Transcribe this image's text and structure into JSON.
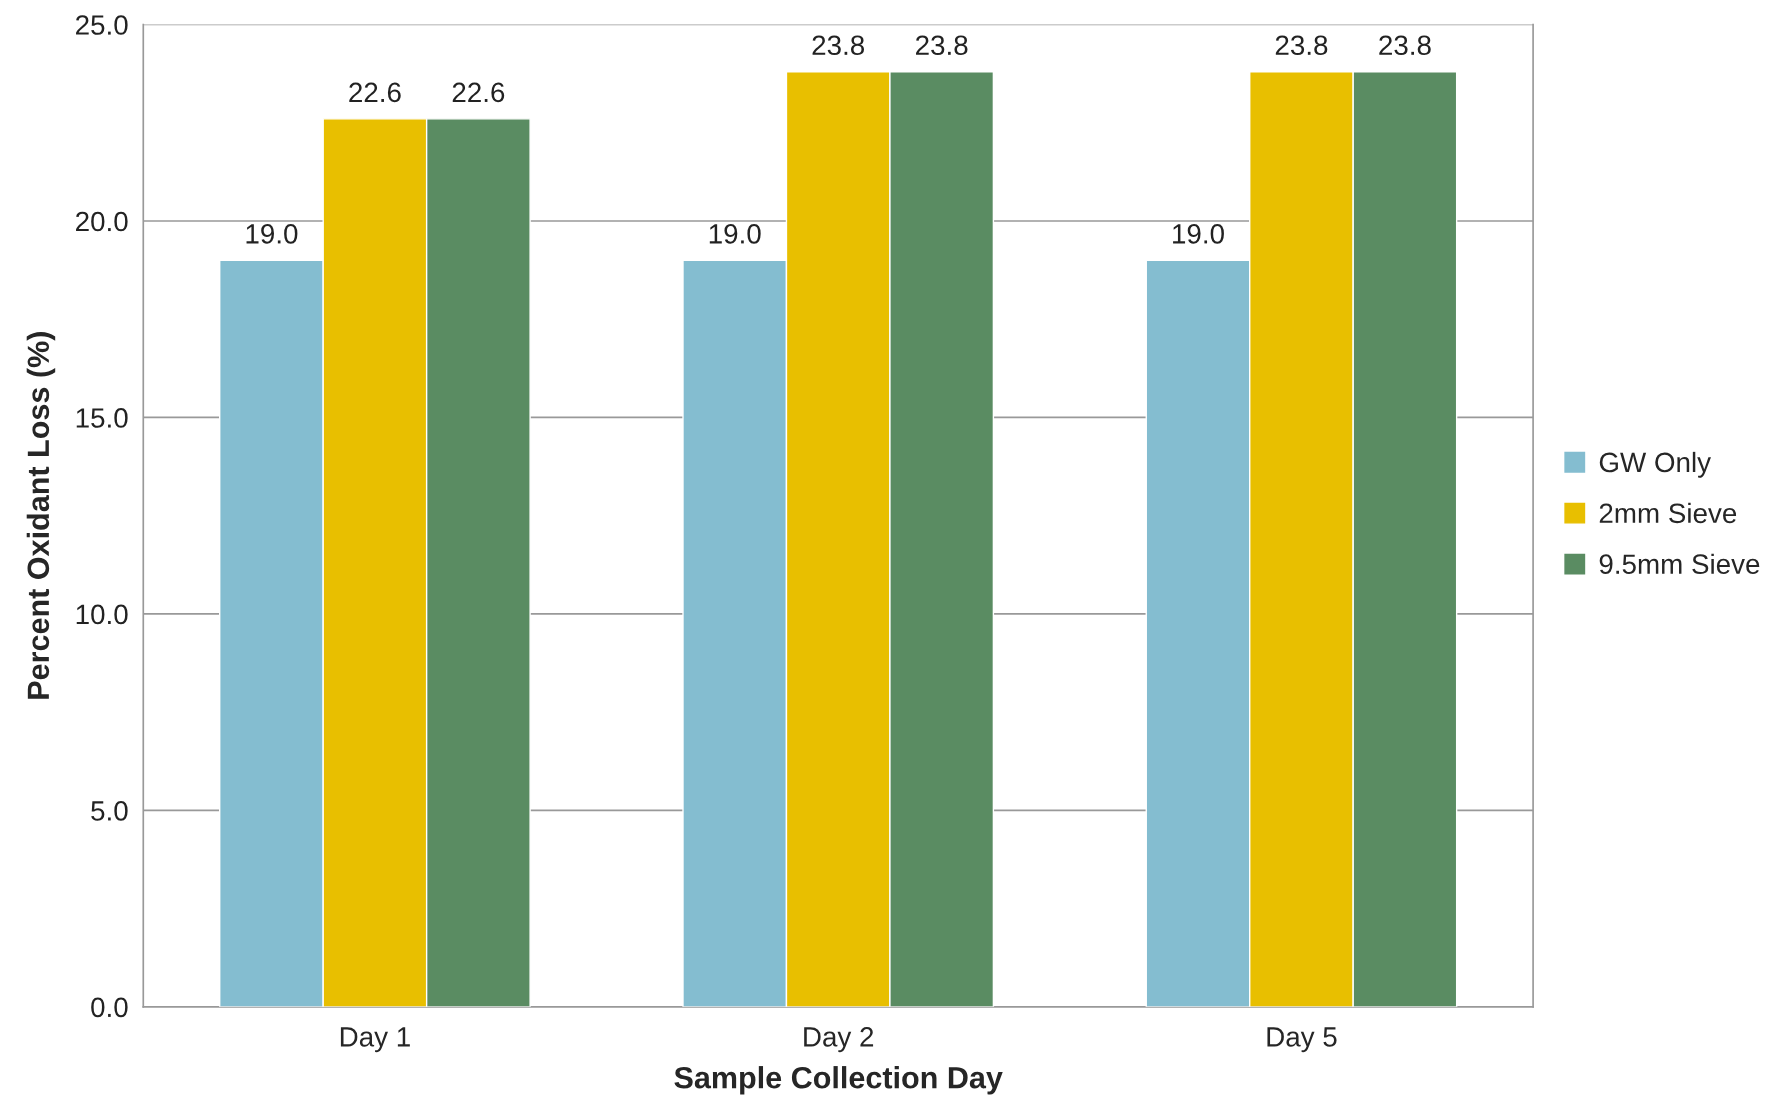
{
  "chart_data": {
    "type": "bar",
    "xlabel": "Sample Collection Day",
    "ylabel": "Percent Oxidant Loss (%)",
    "categories": [
      "Day 1",
      "Day 2",
      "Day 5"
    ],
    "series": [
      {
        "name": "GW Only",
        "color": "#84bdd0",
        "values": [
          19.0,
          19.0,
          19.0
        ],
        "value_labels": [
          "19.0",
          "19.0",
          "19.0"
        ]
      },
      {
        "name": "2mm Sieve",
        "color": "#e8bf00",
        "values": [
          22.6,
          23.8,
          23.8
        ],
        "value_labels": [
          "22.6",
          "23.8",
          "23.8"
        ]
      },
      {
        "name": "9.5mm Sieve",
        "color": "#5a8c62",
        "values": [
          22.6,
          23.8,
          23.8
        ],
        "value_labels": [
          "22.6",
          "23.8",
          "23.8"
        ]
      }
    ],
    "ylim": [
      0,
      25
    ],
    "yticks": [
      {
        "value": 0,
        "label": "0.0"
      },
      {
        "value": 5,
        "label": "5.0"
      },
      {
        "value": 10,
        "label": "10.0"
      },
      {
        "value": 15,
        "label": "15.0"
      },
      {
        "value": 20,
        "label": "20.0"
      },
      {
        "value": 25,
        "label": "25.0"
      }
    ],
    "grid": "y",
    "legend": "right"
  }
}
